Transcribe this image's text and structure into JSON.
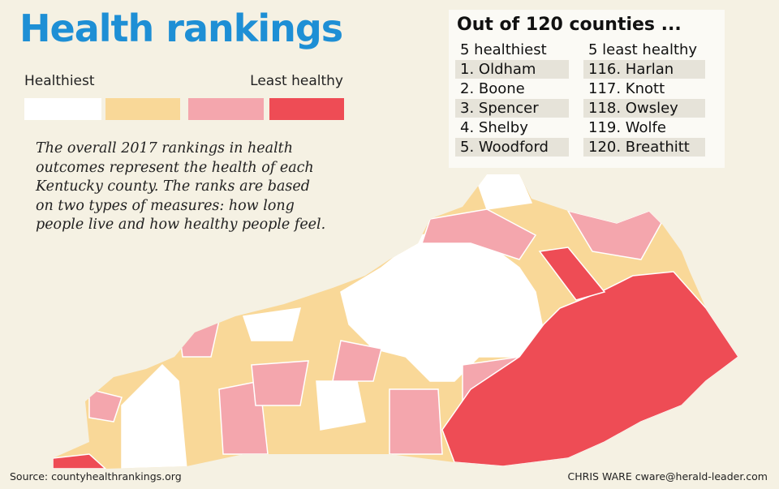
{
  "header": {
    "title": "Health rankings"
  },
  "legend": {
    "low_label": "Healthiest",
    "high_label": "Least healthy",
    "colors": [
      "#ffffff",
      "#f9d898",
      "#f4a6ad",
      "#ee4c55"
    ]
  },
  "description": "The overall 2017 rankings in health outcomes represent the health of each Kentucky county. The ranks are based on two types of measures: how long people live and how healthy people feel.",
  "table": {
    "title": "Out of 120 counties ...",
    "columns": [
      "5 healthiest",
      "5 least healthy"
    ],
    "rows": [
      [
        "1. Oldham",
        "116. Harlan"
      ],
      [
        "2. Boone",
        "117. Knott"
      ],
      [
        "3. Spencer",
        "118. Owsley"
      ],
      [
        "4. Shelby",
        "119. Wolfe"
      ],
      [
        "5. Woodford",
        "120. Breathitt"
      ]
    ]
  },
  "footer": {
    "source": "Source: countyhealthrankings.org",
    "credit": "CHRIS WARE cware@herald-leader.com"
  }
}
